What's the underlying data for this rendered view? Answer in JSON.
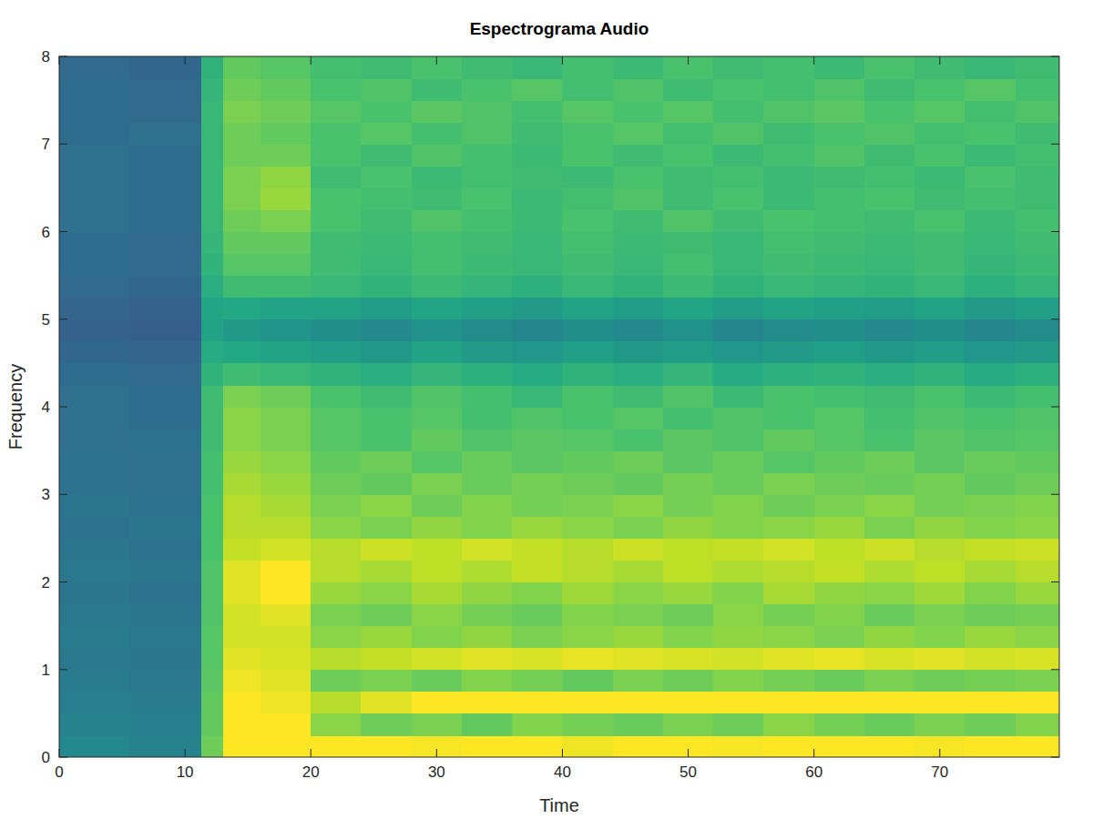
{
  "chart_data": {
    "type": "heatmap",
    "title": "Espectrograma Audio",
    "x_label": "Time",
    "y_label": "Frequency",
    "xlim": [
      0,
      79.5
    ],
    "xticks": [
      0,
      10,
      20,
      30,
      40,
      50,
      60,
      70
    ],
    "ylim": [
      0,
      8
    ],
    "yticks": [
      0,
      1,
      2,
      3,
      4,
      5,
      6,
      7,
      8
    ],
    "zlim": [
      0,
      90
    ],
    "x_edges": [
      0,
      5.6,
      11.3,
      13,
      16,
      20,
      24,
      28,
      32,
      36,
      40,
      44,
      48,
      52,
      56,
      60,
      64,
      68,
      72,
      76,
      79.5
    ],
    "y_edges": [
      0,
      0.25,
      0.5,
      0.75,
      1,
      1.25,
      1.5,
      1.75,
      2,
      2.25,
      2.5,
      2.75,
      3,
      3.25,
      3.5,
      3.75,
      4,
      4.25,
      4.5,
      4.75,
      5,
      5.25,
      5.5,
      5.75,
      6,
      6.25,
      6.5,
      6.75,
      7,
      7.25,
      7.5,
      7.75,
      8
    ],
    "cells": [
      [
        42,
        40,
        70,
        95,
        96,
        92,
        90,
        89,
        91,
        90,
        88,
        90,
        91,
        89,
        90,
        92,
        90,
        89,
        91,
        90
      ],
      [
        40,
        39,
        68,
        90,
        90,
        74,
        70,
        72,
        68,
        73,
        71,
        69,
        72,
        70,
        74,
        71,
        69,
        72,
        70,
        73
      ],
      [
        38,
        37,
        68,
        90,
        88,
        80,
        86,
        90,
        92,
        93,
        92,
        91,
        93,
        92,
        94,
        93,
        92,
        93,
        92,
        91
      ],
      [
        37,
        36,
        67,
        88,
        86,
        70,
        72,
        69,
        73,
        71,
        68,
        72,
        70,
        73,
        71,
        69,
        72,
        70,
        71,
        72
      ],
      [
        36,
        35,
        66,
        86,
        85,
        80,
        82,
        84,
        86,
        85,
        87,
        86,
        85,
        84,
        86,
        87,
        85,
        86,
        84,
        85
      ],
      [
        37,
        36,
        66,
        84,
        84,
        74,
        76,
        73,
        75,
        72,
        74,
        76,
        73,
        75,
        74,
        72,
        75,
        73,
        76,
        74
      ],
      [
        36,
        35,
        65,
        84,
        86,
        72,
        70,
        74,
        71,
        69,
        73,
        72,
        70,
        74,
        71,
        73,
        69,
        72,
        70,
        71
      ],
      [
        35,
        34,
        65,
        86,
        90,
        76,
        74,
        78,
        75,
        73,
        77,
        74,
        76,
        73,
        78,
        75,
        74,
        77,
        73,
        76
      ],
      [
        36,
        35,
        65,
        86,
        90,
        80,
        78,
        81,
        79,
        82,
        80,
        78,
        81,
        79,
        80,
        82,
        79,
        81,
        78,
        80
      ],
      [
        35,
        34,
        64,
        82,
        84,
        80,
        83,
        81,
        84,
        82,
        80,
        83,
        81,
        82,
        84,
        81,
        83,
        80,
        82,
        83
      ],
      [
        34,
        35,
        64,
        80,
        80,
        74,
        72,
        75,
        73,
        76,
        74,
        72,
        75,
        73,
        74,
        76,
        72,
        75,
        73,
        74
      ],
      [
        35,
        34,
        64,
        80,
        78,
        72,
        74,
        70,
        73,
        71,
        72,
        74,
        71,
        73,
        70,
        72,
        74,
        71,
        72,
        73
      ],
      [
        34,
        33,
        63,
        78,
        76,
        70,
        68,
        72,
        69,
        71,
        70,
        68,
        71,
        69,
        72,
        70,
        69,
        71,
        68,
        70
      ],
      [
        34,
        33,
        63,
        76,
        74,
        68,
        70,
        66,
        69,
        67,
        68,
        70,
        67,
        69,
        66,
        68,
        70,
        67,
        69,
        68
      ],
      [
        33,
        34,
        62,
        74,
        72,
        66,
        64,
        68,
        65,
        67,
        66,
        64,
        67,
        65,
        68,
        66,
        64,
        67,
        65,
        66
      ],
      [
        33,
        32,
        62,
        74,
        72,
        66,
        64,
        66,
        63,
        65,
        64,
        66,
        63,
        65,
        64,
        66,
        63,
        65,
        64,
        65
      ],
      [
        33,
        32,
        62,
        72,
        70,
        64,
        62,
        65,
        63,
        60,
        64,
        62,
        65,
        61,
        64,
        63,
        62,
        64,
        61,
        63
      ],
      [
        32,
        31,
        58,
        62,
        60,
        58,
        56,
        59,
        57,
        55,
        58,
        56,
        59,
        55,
        57,
        58,
        56,
        58,
        55,
        57
      ],
      [
        30,
        29,
        55,
        54,
        52,
        50,
        48,
        52,
        49,
        47,
        51,
        48,
        50,
        47,
        49,
        51,
        48,
        50,
        47,
        49
      ],
      [
        28,
        27,
        52,
        48,
        46,
        44,
        42,
        45,
        43,
        41,
        44,
        42,
        45,
        41,
        43,
        44,
        42,
        44,
        41,
        43
      ],
      [
        29,
        28,
        53,
        54,
        52,
        52,
        50,
        53,
        51,
        49,
        52,
        50,
        53,
        50,
        52,
        51,
        50,
        52,
        49,
        51
      ],
      [
        31,
        30,
        56,
        62,
        62,
        60,
        58,
        61,
        59,
        57,
        60,
        58,
        61,
        58,
        60,
        59,
        58,
        60,
        57,
        59
      ],
      [
        32,
        31,
        58,
        66,
        66,
        62,
        60,
        63,
        61,
        60,
        62,
        60,
        63,
        60,
        62,
        61,
        60,
        62,
        59,
        61
      ],
      [
        32,
        31,
        59,
        68,
        68,
        62,
        61,
        63,
        62,
        60,
        63,
        61,
        62,
        60,
        63,
        62,
        61,
        62,
        60,
        62
      ],
      [
        33,
        32,
        60,
        70,
        72,
        64,
        62,
        65,
        63,
        61,
        64,
        62,
        65,
        62,
        64,
        63,
        62,
        64,
        61,
        63
      ],
      [
        33,
        32,
        60,
        72,
        76,
        64,
        63,
        62,
        64,
        61,
        63,
        65,
        62,
        64,
        61,
        63,
        64,
        62,
        63,
        62
      ],
      [
        33,
        32,
        60,
        72,
        75,
        62,
        64,
        61,
        63,
        62,
        61,
        64,
        62,
        63,
        61,
        62,
        63,
        61,
        64,
        62
      ],
      [
        33,
        32,
        60,
        70,
        70,
        64,
        62,
        65,
        63,
        61,
        64,
        62,
        64,
        61,
        63,
        65,
        62,
        64,
        61,
        63
      ],
      [
        32,
        33,
        60,
        70,
        68,
        64,
        66,
        63,
        65,
        62,
        64,
        66,
        63,
        65,
        62,
        64,
        65,
        63,
        64,
        62
      ],
      [
        32,
        31,
        60,
        72,
        70,
        66,
        64,
        67,
        65,
        63,
        66,
        64,
        66,
        63,
        65,
        67,
        64,
        66,
        63,
        65
      ],
      [
        32,
        31,
        59,
        70,
        68,
        64,
        65,
        62,
        64,
        66,
        63,
        65,
        62,
        64,
        63,
        65,
        62,
        64,
        66,
        63
      ],
      [
        31,
        30,
        58,
        68,
        66,
        63,
        62,
        64,
        62,
        60,
        63,
        61,
        64,
        62,
        63,
        61,
        64,
        62,
        60,
        62
      ]
    ]
  }
}
